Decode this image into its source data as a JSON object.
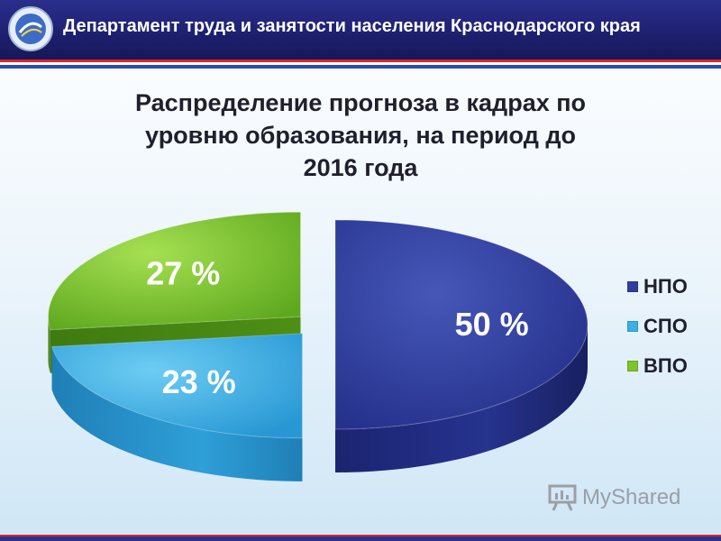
{
  "header": {
    "title": "Департамент труда и занятости населения Краснодарского края",
    "logo_icon": "department-emblem-icon"
  },
  "colors": {
    "header_bg": "#1d1f6e",
    "stripe_red": "#d8262b",
    "stripe_blue": "#2b4ea8"
  },
  "chart_data": {
    "type": "pie",
    "title_lines": [
      "Распределение прогноза в кадрах по",
      "уровню образования, на период до",
      "2016 года"
    ],
    "series": [
      {
        "name": "НПО",
        "value": 50,
        "label": "50 %",
        "color": "#2e3f9e"
      },
      {
        "name": "СПО",
        "value": 23,
        "label": "23 %",
        "color": "#3ab0e4"
      },
      {
        "name": "ВПО",
        "value": 27,
        "label": "27 %",
        "color": "#7cc42a"
      }
    ],
    "legend_position": "right",
    "exploded": true,
    "three_d": true
  },
  "watermark": {
    "text": "MyShared",
    "icon": "presentation-board-icon"
  }
}
